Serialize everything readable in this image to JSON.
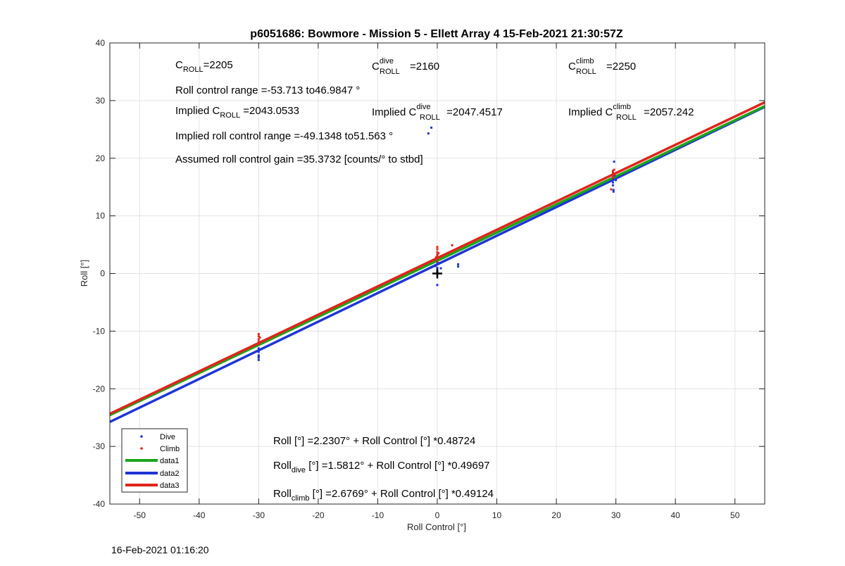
{
  "footer_timestamp": "16-Feb-2021 01:16:20",
  "colors": {
    "dive": "#1f35d6",
    "climb": "#e0241b",
    "data1": "#1aa51a",
    "data2": "#1f35d6",
    "data3": "#e0241b"
  },
  "chart_data": {
    "type": "scatter",
    "title": "p6051686: Bowmore - Mission 5 - Ellett Array 4 15-Feb-2021 21:30:57Z",
    "xlabel": "Roll Control [°]",
    "ylabel": "Roll [°]",
    "xlim": [
      -55,
      55
    ],
    "ylim": [
      -40,
      40
    ],
    "xticks": [
      -50,
      -40,
      -30,
      -20,
      -10,
      0,
      10,
      20,
      30,
      40,
      50
    ],
    "yticks": [
      -40,
      -30,
      -20,
      -10,
      0,
      10,
      20,
      30,
      40
    ],
    "grid": true,
    "legend_position": "bottom-left",
    "series": [
      {
        "name": "Dive",
        "kind": "points",
        "points": [
          [
            -30,
            -13
          ],
          [
            -30,
            -13.6
          ],
          [
            -30,
            -14.2
          ],
          [
            -30,
            -14.6
          ],
          [
            -30,
            -15
          ],
          [
            -30,
            -13.4
          ],
          [
            -30,
            -14.4
          ],
          [
            -1.5,
            24.3
          ],
          [
            -1,
            25.3
          ],
          [
            0,
            -2
          ],
          [
            0,
            0.5
          ],
          [
            0,
            1
          ],
          [
            0,
            1.6
          ],
          [
            0,
            2
          ],
          [
            0,
            0.2
          ],
          [
            -0.3,
            1.3
          ],
          [
            0.3,
            1.8
          ],
          [
            0.6,
            0.9
          ],
          [
            3.5,
            1.2
          ],
          [
            3.5,
            1.6
          ],
          [
            29.7,
            19.4
          ],
          [
            29.5,
            16.5
          ],
          [
            29.5,
            15.8
          ],
          [
            29.5,
            15.3
          ],
          [
            29.6,
            14.5
          ],
          [
            29.6,
            14.2
          ],
          [
            30,
            16.2
          ],
          [
            29.8,
            17
          ]
        ]
      },
      {
        "name": "Climb",
        "kind": "points",
        "points": [
          [
            -30,
            -10.5
          ],
          [
            -30,
            -10.9
          ],
          [
            -30,
            -11.4
          ],
          [
            -30,
            -11.8
          ],
          [
            -30,
            -12.2
          ],
          [
            -29.8,
            -11.1
          ],
          [
            0,
            2.1
          ],
          [
            0,
            2.6
          ],
          [
            0,
            3
          ],
          [
            0,
            3.3
          ],
          [
            0,
            3.7
          ],
          [
            0,
            4.2
          ],
          [
            0,
            4.6
          ],
          [
            -0.2,
            2.8
          ],
          [
            0.2,
            3.5
          ],
          [
            2.5,
            4.9
          ],
          [
            29.5,
            17
          ],
          [
            29.5,
            17.5
          ],
          [
            29.5,
            17.8
          ],
          [
            29.5,
            16.6
          ],
          [
            29.7,
            18
          ],
          [
            29.2,
            14.6
          ],
          [
            29.8,
            17.2
          ]
        ]
      },
      {
        "name": "data1",
        "kind": "line",
        "intercept": 2.2307,
        "slope": 0.48724
      },
      {
        "name": "data2",
        "kind": "line",
        "intercept": 1.5812,
        "slope": 0.49697
      },
      {
        "name": "data3",
        "kind": "line",
        "intercept": 2.6769,
        "slope": 0.49124
      }
    ],
    "marker": {
      "x": 0,
      "y": 0,
      "symbol": "+"
    },
    "annotations": {
      "c_roll": {
        "base": "C",
        "sub": "ROLL",
        "value": "=2205"
      },
      "c_roll_dive": {
        "base": "C",
        "sup": "dive",
        "sub": "ROLL",
        "value": "=2160"
      },
      "c_roll_climb": {
        "base": "C",
        "sup": "climb",
        "sub": "ROLL",
        "value": "=2250"
      },
      "roll_range": "Roll control range =-53.713 to46.9847 °",
      "implied_c_roll": {
        "prefix": "Implied C",
        "sub": "ROLL",
        "value": " =2043.0533"
      },
      "implied_c_roll_dive": {
        "prefix": "Implied C",
        "sup": "dive",
        "sub": "ROLL",
        "value": " =2047.4517"
      },
      "implied_c_roll_climb": {
        "prefix": "Implied C",
        "sup": "climb",
        "sub": "ROLL",
        "value": " =2057.242"
      },
      "implied_range": "Implied roll control range =-49.1348 to51.563 °",
      "gain": "Assumed roll control gain =35.3732 [counts/° to stbd]",
      "fit_all": "Roll [°] =2.2307° + Roll Control [°] *0.48724",
      "fit_dive": {
        "base": "Roll",
        "sub": "dive",
        "rest": " [°] =1.5812° + Roll Control [°] *0.49697"
      },
      "fit_climb": {
        "base": "Roll",
        "sub": "climb",
        "rest": " [°] =2.6769° + Roll Control [°] *0.49124"
      }
    }
  }
}
